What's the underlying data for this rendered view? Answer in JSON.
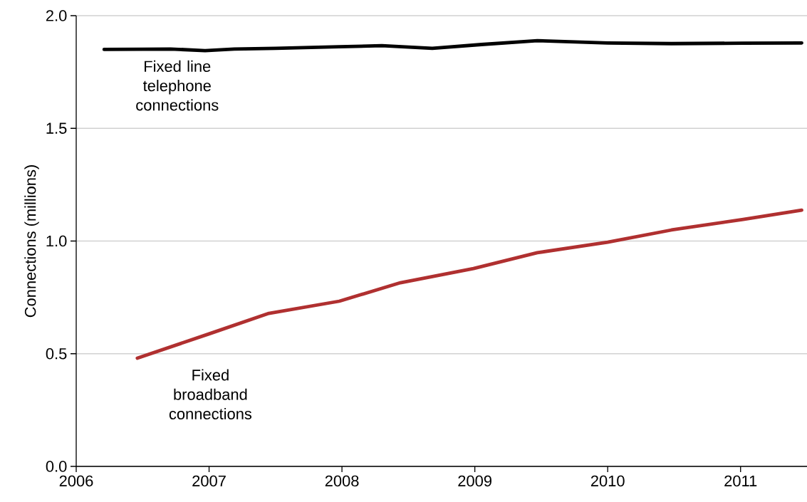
{
  "chart_data": {
    "type": "line",
    "ylabel": "Connections (millions)",
    "xlim": [
      2006,
      2011.5
    ],
    "xticks": [
      2006,
      2007,
      2008,
      2009,
      2010,
      2011
    ],
    "ylim": [
      0,
      2.0
    ],
    "yticks": [
      {
        "value": 0,
        "label": "0.0"
      },
      {
        "value": 0.5,
        "label": "0.5"
      },
      {
        "value": 1.0,
        "label": "1.0"
      },
      {
        "value": 1.5,
        "label": "1.5"
      },
      {
        "value": 2.0,
        "label": "2.0"
      }
    ],
    "grid": "y",
    "legend": false,
    "series": [
      {
        "name": "Fixed line telephone connections",
        "color": "#000000",
        "x": [
          2006.21,
          2006.5,
          2006.71,
          2006.97,
          2007.19,
          2007.5,
          2007.98,
          2008.3,
          2008.68,
          2009.05,
          2009.47,
          2010.0,
          2010.48,
          2011.02,
          2011.46
        ],
        "values": [
          1.85,
          1.851,
          1.852,
          1.845,
          1.852,
          1.855,
          1.862,
          1.867,
          1.855,
          1.872,
          1.889,
          1.879,
          1.876,
          1.878,
          1.879
        ]
      },
      {
        "name": "Fixed broadband connections",
        "color": "#b03030",
        "x": [
          2006.46,
          2007.0,
          2007.45,
          2007.98,
          2008.44,
          2008.99,
          2009.47,
          2010.0,
          2010.48,
          2011.02,
          2011.46
        ],
        "values": [
          0.48,
          0.588,
          0.679,
          0.733,
          0.815,
          0.878,
          0.948,
          0.995,
          1.049,
          1.096,
          1.137
        ]
      }
    ]
  }
}
